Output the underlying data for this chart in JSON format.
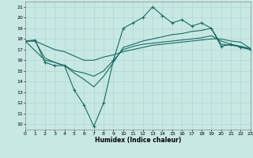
{
  "xlabel": "Humidex (Indice chaleur)",
  "bg_color": "#c8e8e4",
  "grid_color": "#aad4cf",
  "line_color": "#1a6b62",
  "xlim": [
    0,
    23
  ],
  "ylim": [
    9.5,
    21.5
  ],
  "xticks": [
    0,
    1,
    2,
    3,
    4,
    5,
    6,
    7,
    8,
    9,
    10,
    11,
    12,
    13,
    14,
    15,
    16,
    17,
    18,
    19,
    20,
    21,
    22,
    23
  ],
  "yticks": [
    10,
    11,
    12,
    13,
    14,
    15,
    16,
    17,
    18,
    19,
    20,
    21
  ],
  "line1_x": [
    0,
    1,
    2,
    3,
    4,
    5,
    6,
    7,
    8,
    9,
    10,
    11,
    12,
    13,
    14,
    15,
    16,
    17,
    18,
    19,
    20,
    21,
    22,
    23
  ],
  "line1_y": [
    17.8,
    17.9,
    15.8,
    15.5,
    15.5,
    13.2,
    11.8,
    9.8,
    12.0,
    16.0,
    19.0,
    19.5,
    20.0,
    21.0,
    20.2,
    19.5,
    19.8,
    19.2,
    19.5,
    19.0,
    17.3,
    17.5,
    17.2,
    17.0
  ],
  "line2_x": [
    0,
    1,
    2,
    3,
    4,
    5,
    6,
    7,
    8,
    9,
    10,
    11,
    12,
    13,
    14,
    15,
    16,
    17,
    18,
    19,
    20,
    21,
    22,
    23
  ],
  "line2_y": [
    17.8,
    17.8,
    17.4,
    17.0,
    16.8,
    16.4,
    16.0,
    16.0,
    16.3,
    16.5,
    16.8,
    17.0,
    17.2,
    17.4,
    17.5,
    17.6,
    17.7,
    17.8,
    17.9,
    18.0,
    18.0,
    17.8,
    17.7,
    17.1
  ],
  "line3_x": [
    0,
    2,
    3,
    4,
    5,
    6,
    7,
    8,
    9,
    10,
    11,
    12,
    13,
    14,
    15,
    16,
    17,
    18,
    19,
    20,
    21,
    22,
    23
  ],
  "line3_y": [
    17.8,
    16.0,
    15.8,
    15.5,
    14.8,
    14.2,
    13.5,
    14.5,
    15.8,
    17.2,
    17.5,
    17.8,
    18.0,
    18.2,
    18.4,
    18.5,
    18.7,
    18.8,
    19.0,
    17.5,
    17.4,
    17.3,
    17.1
  ],
  "line4_x": [
    0,
    1,
    2,
    3,
    4,
    5,
    6,
    7,
    8,
    9,
    10,
    11,
    12,
    13,
    14,
    15,
    16,
    17,
    18,
    19,
    20,
    21,
    22,
    23
  ],
  "line4_y": [
    17.8,
    17.8,
    16.2,
    15.8,
    15.5,
    15.0,
    14.8,
    14.5,
    15.0,
    16.0,
    17.0,
    17.3,
    17.5,
    17.6,
    17.7,
    17.8,
    17.9,
    18.0,
    18.1,
    18.3,
    17.8,
    17.5,
    17.3,
    17.0
  ]
}
